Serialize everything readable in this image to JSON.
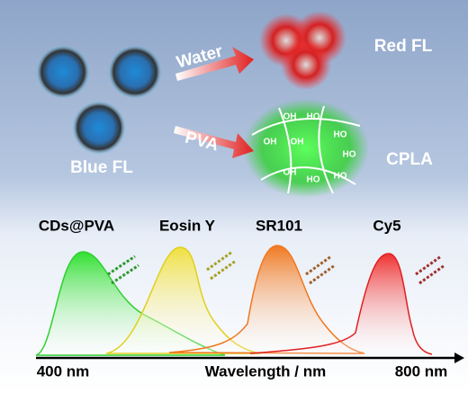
{
  "top": {
    "arrow_labels": {
      "water": "Water",
      "pva": "PVA"
    },
    "states": {
      "blue": "Blue FL",
      "red": "Red FL",
      "cpla": "CPLA"
    },
    "hydroxyl_labels": [
      "OH",
      "HO",
      "OH",
      "OH",
      "HO",
      "HO",
      "OH",
      "HO",
      "HO"
    ]
  },
  "spectra": {
    "dyes": [
      "CDs@PVA",
      "Eosin Y",
      "SR101",
      "Cy5"
    ],
    "axis": {
      "start": "400 nm",
      "title": "Wavelength / nm",
      "end": "800 nm"
    }
  }
}
